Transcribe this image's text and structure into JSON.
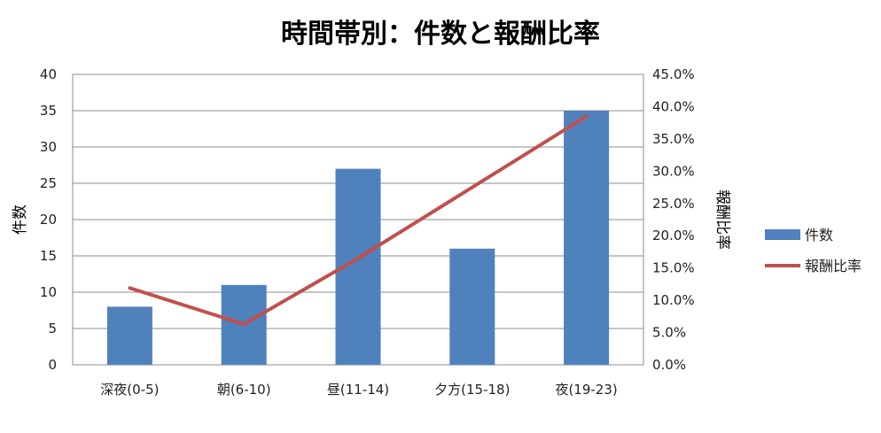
{
  "chart_data": {
    "type": "bar",
    "title": "時間帯別：件数と報酬比率",
    "categories": [
      "深夜(0-5)",
      "朝(6-10)",
      "昼(11-14)",
      "夕方(15-18)",
      "夜(19-23)"
    ],
    "series": [
      {
        "name": "件数",
        "type": "bar",
        "axis": "left",
        "color": "#4f81bd",
        "values": [
          8,
          11,
          27,
          16,
          35
        ]
      },
      {
        "name": "報酬比率",
        "type": "line",
        "axis": "right",
        "color": "#c0504d",
        "values": [
          0.119,
          0.063,
          0.165,
          0.275,
          0.385
        ]
      }
    ],
    "ylabel": "件数",
    "y2label": "報酬比率",
    "ylim": [
      0,
      40
    ],
    "y2lim": [
      0,
      0.45
    ],
    "yticks": [
      "0",
      "5",
      "10",
      "15",
      "20",
      "25",
      "30",
      "35",
      "40"
    ],
    "y2ticks": [
      "0.0%",
      "5.0%",
      "10.0%",
      "15.0%",
      "20.0%",
      "25.0%",
      "30.0%",
      "35.0%",
      "40.0%",
      "45.0%"
    ],
    "grid": true,
    "legend": "right"
  }
}
